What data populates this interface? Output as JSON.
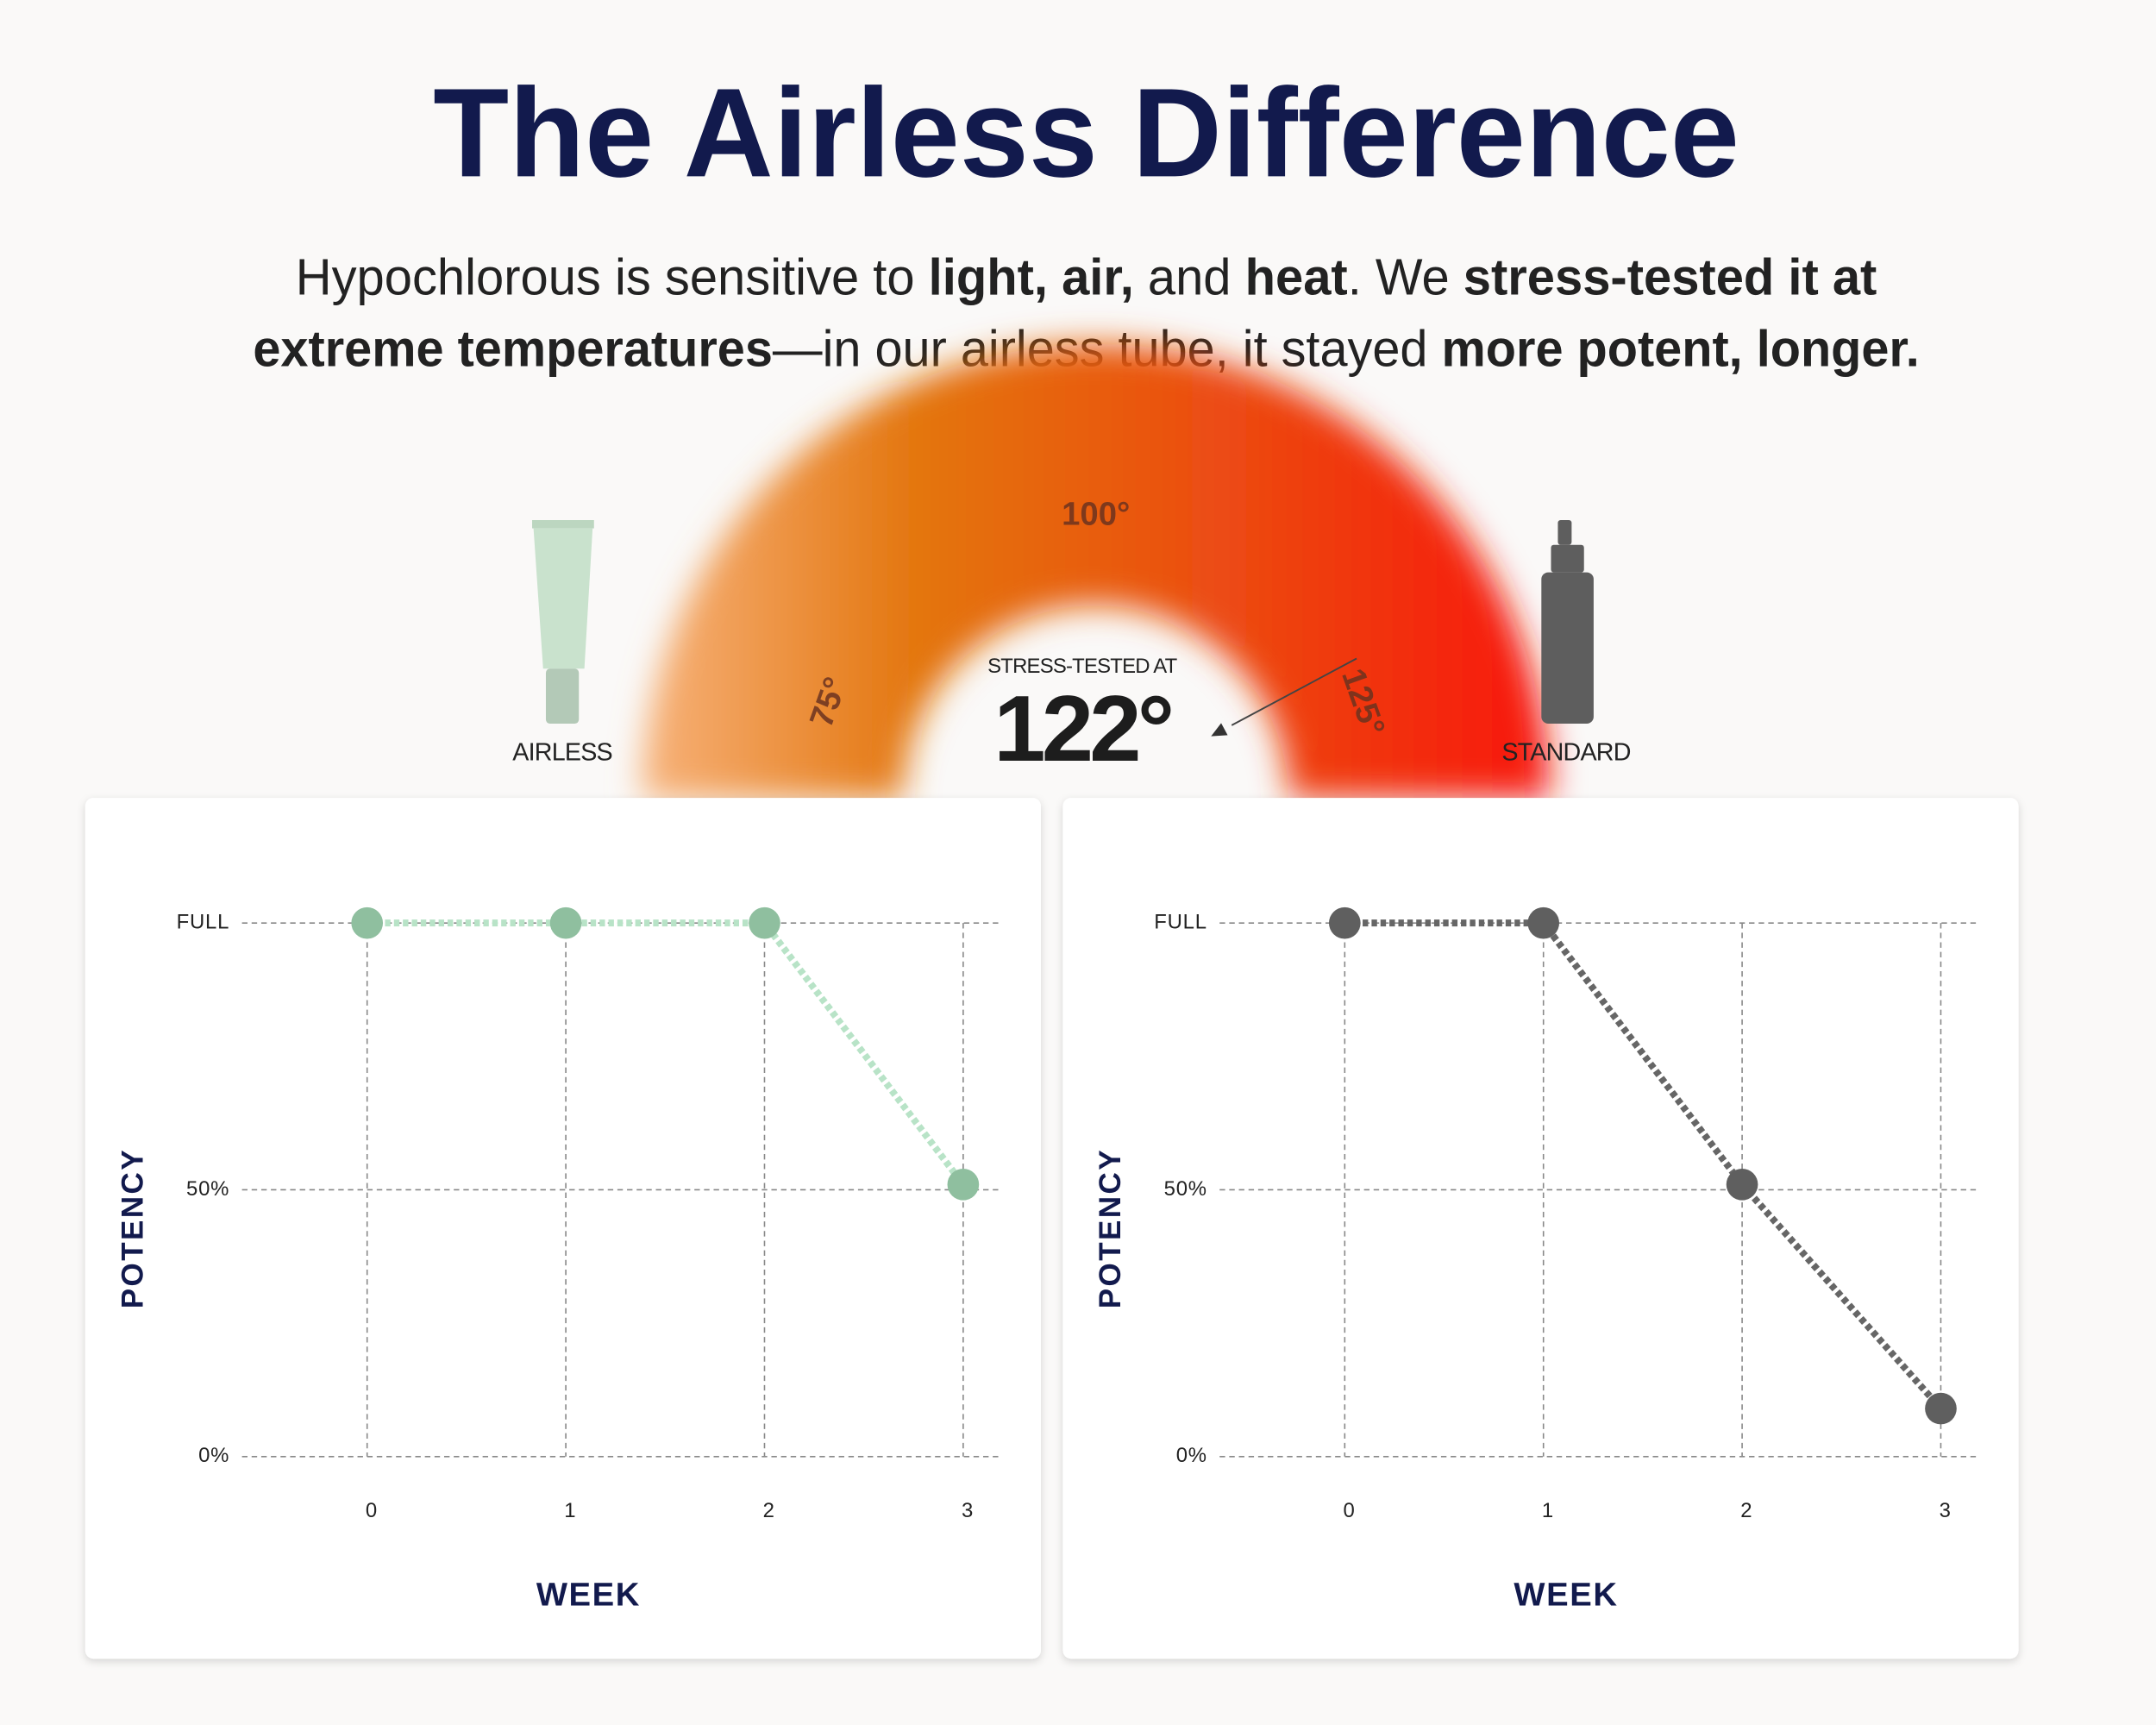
{
  "heading": "The Airless Difference",
  "subtitle_lines": [
    [
      {
        "text": "Hypochlorous is sensitive to "
      },
      {
        "text": "light, air,",
        "bold": true
      },
      {
        "text": " and "
      },
      {
        "text": "heat",
        "bold": true
      },
      {
        "text": ". We "
      },
      {
        "text": "stress-tested it at",
        "bold": true
      }
    ],
    [
      {
        "text": "extreme temperatures",
        "bold": true
      },
      {
        "text": "—in our airless tube, it stayed "
      },
      {
        "text": "more potent, longer.",
        "bold": true
      }
    ]
  ],
  "gauge": {
    "type": "gauge",
    "lim": [
      68,
      132
    ],
    "ticks": [
      {
        "value": 75,
        "label": "75°"
      },
      {
        "value": 100,
        "label": "100°"
      },
      {
        "value": 125,
        "label": "125°"
      }
    ],
    "label": "STRESS-TESTED AT",
    "value": 122,
    "value_label": "122°"
  },
  "chart_data": [
    {
      "type": "line",
      "x_label": "WEEK",
      "y_label": "POTENCY",
      "categories": [
        "0",
        "1",
        "2",
        "3"
      ],
      "series": [
        {
          "name": "AIRLESS",
          "color": "#8fbf9f",
          "line_color": "#b8e3c7",
          "values": [
            100,
            100,
            100,
            51
          ]
        }
      ],
      "ylim": [
        0,
        100
      ],
      "yticks": [
        {
          "value": 0,
          "label": "0%"
        },
        {
          "value": 50,
          "label": "50%"
        },
        {
          "value": 100,
          "label": "FULL"
        }
      ],
      "grid": true
    },
    {
      "type": "line",
      "x_label": "WEEK",
      "y_label": "POTENCY",
      "categories": [
        "0",
        "1",
        "2",
        "3"
      ],
      "series": [
        {
          "name": "STANDARD",
          "color": "#5f5f5f",
          "line_color": "#666666",
          "values": [
            100,
            100,
            51,
            9
          ]
        }
      ],
      "ylim": [
        0,
        100
      ],
      "yticks": [
        {
          "value": 0,
          "label": "0%"
        },
        {
          "value": 50,
          "label": "50%"
        },
        {
          "value": 100,
          "label": "FULL"
        }
      ],
      "grid": true
    }
  ]
}
